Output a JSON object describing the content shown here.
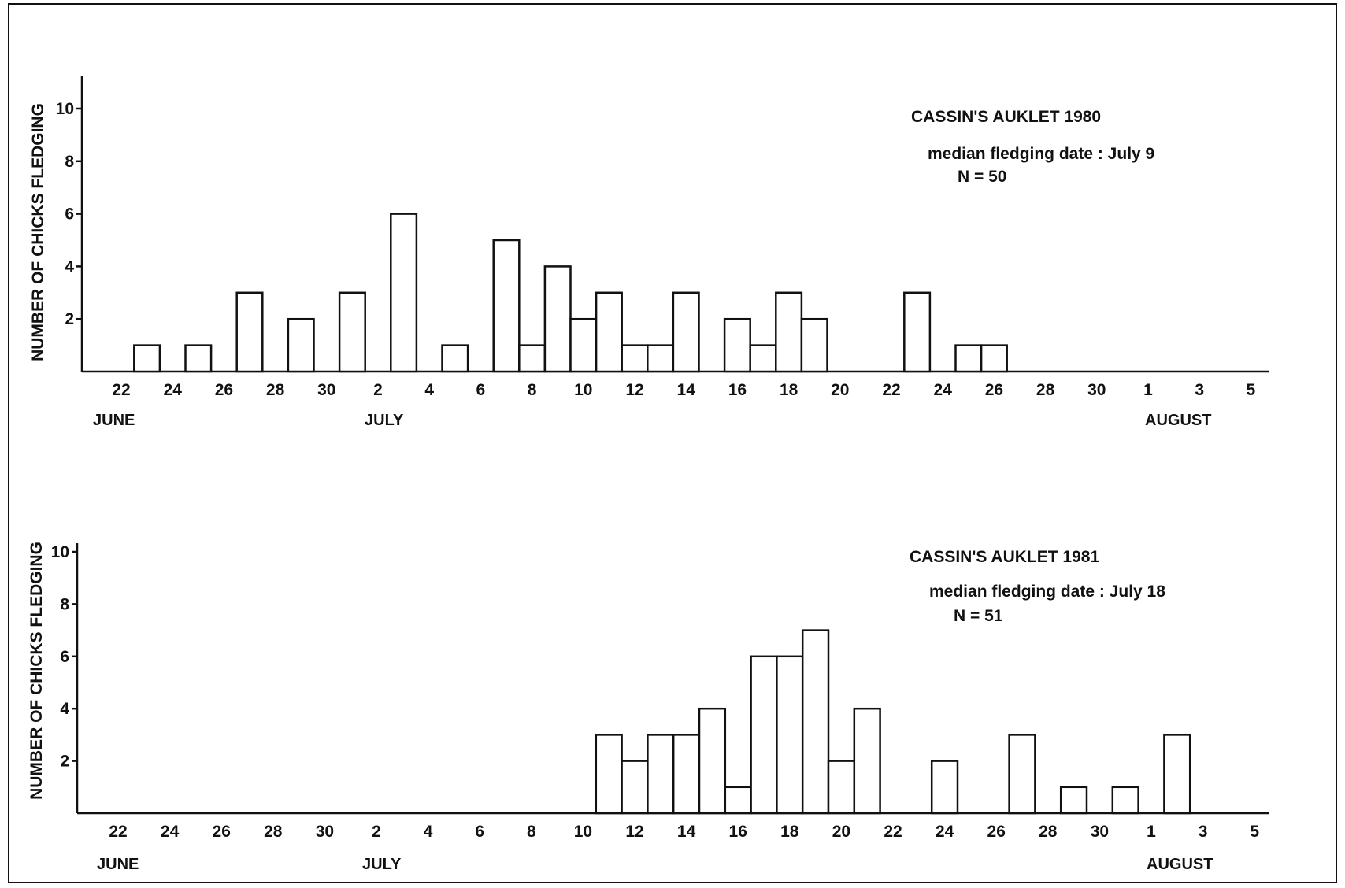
{
  "chart_data": [
    {
      "type": "bar",
      "title": "CASSIN'S AUKLET 1980",
      "annotation_median": "median fledging date : July 9",
      "annotation_n": "N = 50",
      "ylabel": "NUMBER OF CHICKS FLEDGING",
      "ylim": [
        0,
        11
      ],
      "y_ticks": [
        "2",
        "4",
        "6",
        "8",
        "10"
      ],
      "x_tick_labels": [
        "22",
        "24",
        "26",
        "28",
        "30",
        "2",
        "4",
        "6",
        "8",
        "10",
        "12",
        "14",
        "16",
        "18",
        "20",
        "22",
        "24",
        "26",
        "28",
        "30",
        "1",
        "3",
        "5"
      ],
      "month_labels": [
        "JUNE",
        "JULY",
        "AUGUST"
      ],
      "bars": [
        {
          "date": "June 23",
          "value": 1
        },
        {
          "date": "June 25",
          "value": 1
        },
        {
          "date": "June 27",
          "value": 3
        },
        {
          "date": "June 29",
          "value": 2
        },
        {
          "date": "July 1",
          "value": 3
        },
        {
          "date": "July 3",
          "value": 6
        },
        {
          "date": "July 5",
          "value": 1
        },
        {
          "date": "July 7",
          "value": 5
        },
        {
          "date": "July 8",
          "value": 1
        },
        {
          "date": "July 9",
          "value": 4
        },
        {
          "date": "July 10",
          "value": 2
        },
        {
          "date": "July 11",
          "value": 3
        },
        {
          "date": "July 12",
          "value": 1
        },
        {
          "date": "July 13",
          "value": 1
        },
        {
          "date": "July 14",
          "value": 3
        },
        {
          "date": "July 16",
          "value": 2
        },
        {
          "date": "July 17",
          "value": 1
        },
        {
          "date": "July 18",
          "value": 3
        },
        {
          "date": "July 19",
          "value": 2
        },
        {
          "date": "July 23",
          "value": 3
        },
        {
          "date": "July 25",
          "value": 1
        },
        {
          "date": "July 26",
          "value": 1
        }
      ]
    },
    {
      "type": "bar",
      "title": "CASSIN'S AUKLET 1981",
      "annotation_median": "median fledging date : July 18",
      "annotation_n": "N = 51",
      "ylabel": "NUMBER OF CHICKS FLEDGING",
      "ylim": [
        0,
        11
      ],
      "y_ticks": [
        "2",
        "4",
        "6",
        "8",
        "10"
      ],
      "x_tick_labels": [
        "22",
        "24",
        "26",
        "28",
        "30",
        "2",
        "4",
        "6",
        "8",
        "10",
        "12",
        "14",
        "16",
        "18",
        "20",
        "22",
        "24",
        "26",
        "28",
        "30",
        "1",
        "3",
        "5"
      ],
      "month_labels": [
        "JUNE",
        "JULY",
        "AUGUST"
      ],
      "bars": [
        {
          "date": "July 11",
          "value": 3
        },
        {
          "date": "July 12",
          "value": 2
        },
        {
          "date": "July 13",
          "value": 3
        },
        {
          "date": "July 14",
          "value": 3
        },
        {
          "date": "July 15",
          "value": 4
        },
        {
          "date": "July 16",
          "value": 1
        },
        {
          "date": "July 17",
          "value": 6
        },
        {
          "date": "July 18",
          "value": 6
        },
        {
          "date": "July 19",
          "value": 7
        },
        {
          "date": "July 20",
          "value": 2
        },
        {
          "date": "July 21",
          "value": 4
        },
        {
          "date": "July 24",
          "value": 2
        },
        {
          "date": "July 27",
          "value": 3
        },
        {
          "date": "July 29",
          "value": 1
        },
        {
          "date": "July 31",
          "value": 1
        },
        {
          "date": "August 2",
          "value": 3
        }
      ]
    }
  ]
}
